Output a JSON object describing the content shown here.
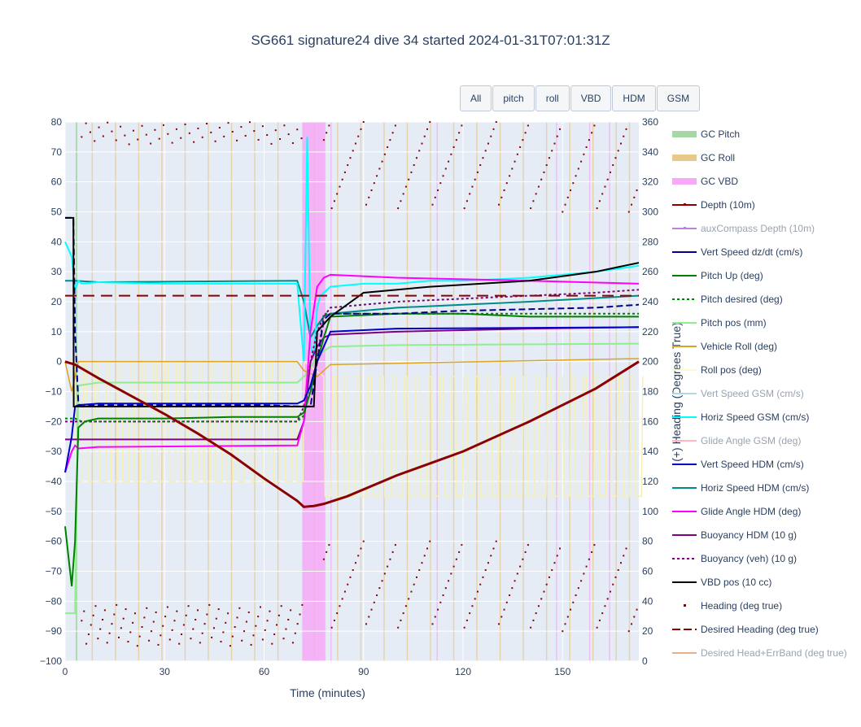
{
  "title": "SG661 signature24 dive 34 started 2024-01-31T07:01:31Z",
  "buttons": [
    "All",
    "pitch",
    "roll",
    "VBD",
    "HDM",
    "GSM"
  ],
  "colors": {
    "plot_bg": "#e5ecf6",
    "grid": "#ffffff",
    "text": "#2a3f5f"
  },
  "chart_data": {
    "type": "line",
    "xlabel": "Time (minutes)",
    "ylabel_right": "(+) Heading (Degrees True)",
    "xlim": [
      0,
      173
    ],
    "ylim_left": [
      -100,
      80
    ],
    "ylim_right": [
      0,
      360
    ],
    "x_ticks": [
      0,
      30,
      60,
      90,
      120,
      150
    ],
    "y_left_ticks": [
      80,
      70,
      60,
      50,
      40,
      30,
      20,
      10,
      0,
      -10,
      -20,
      -30,
      -40,
      -50,
      -60,
      -70,
      -80,
      -90,
      -100
    ],
    "y_left_tick_labels": [
      "80",
      "70",
      "60",
      "50",
      "40",
      "30",
      "20",
      "10",
      "0",
      "−10",
      "−20",
      "−30",
      "−40",
      "−50",
      "−60",
      "−70",
      "−80",
      "−90",
      "−100"
    ],
    "y_right_ticks": [
      360,
      340,
      320,
      300,
      280,
      260,
      240,
      220,
      200,
      180,
      160,
      140,
      120,
      100,
      80,
      60,
      40,
      20,
      0
    ],
    "legend": [
      {
        "name": "GC Pitch",
        "color": "#a6d8a6",
        "style": "band",
        "dim": false
      },
      {
        "name": "GC Roll",
        "color": "#e8c98a",
        "style": "band",
        "dim": false
      },
      {
        "name": "GC VBD",
        "color": "#f7a8f7",
        "style": "band",
        "dim": false
      },
      {
        "name": "Depth (10m)",
        "color": "#8b0000",
        "style": "line-marker",
        "dim": false
      },
      {
        "name": "auxCompass Depth (10m)",
        "color": "#c080e0",
        "style": "line-marker",
        "dim": true
      },
      {
        "name": "Vert Speed dz/dt (cm/s)",
        "color": "#00008b",
        "style": "line",
        "dim": false
      },
      {
        "name": "Pitch Up (deg)",
        "color": "#008000",
        "style": "line",
        "dim": false
      },
      {
        "name": "Pitch desired (deg)",
        "color": "#008000",
        "style": "dot",
        "dim": false
      },
      {
        "name": "Pitch pos (mm)",
        "color": "#90ee90",
        "style": "line",
        "dim": false
      },
      {
        "name": "Vehicle Roll (deg)",
        "color": "#daa520",
        "style": "line",
        "dim": false
      },
      {
        "name": "Roll pos (deg)",
        "color": "#fafad2",
        "style": "line",
        "dim": false
      },
      {
        "name": "Vert Speed GSM (cm/s)",
        "color": "#add8e6",
        "style": "line",
        "dim": true
      },
      {
        "name": "Horiz Speed GSM (cm/s)",
        "color": "#00ffff",
        "style": "line",
        "dim": false
      },
      {
        "name": "Glide Angle GSM (deg)",
        "color": "#ffb6c1",
        "style": "line",
        "dim": true
      },
      {
        "name": "Vert Speed HDM (cm/s)",
        "color": "#0000cd",
        "style": "line",
        "dim": false
      },
      {
        "name": "Horiz Speed HDM (cm/s)",
        "color": "#008b8b",
        "style": "line",
        "dim": false
      },
      {
        "name": "Glide Angle HDM (deg)",
        "color": "#ff00ff",
        "style": "line",
        "dim": false
      },
      {
        "name": "Buoyancy HDM (10 g)",
        "color": "#800080",
        "style": "line",
        "dim": false
      },
      {
        "name": "Buoyancy (veh) (10 g)",
        "color": "#800080",
        "style": "dot",
        "dim": false
      },
      {
        "name": "VBD pos (10 cc)",
        "color": "#000000",
        "style": "line",
        "dim": false
      },
      {
        "name": "Heading (deg true)",
        "color": "#8b0000",
        "style": "marker",
        "dim": false
      },
      {
        "name": "Desired Heading (deg true)",
        "color": "#8b0000",
        "style": "dash",
        "dim": false
      },
      {
        "name": "Desired Head+ErrBand (deg true)",
        "color": "#e8b08a",
        "style": "line",
        "dim": true
      }
    ],
    "bands": {
      "vbd": [
        [
          71.5,
          78.5
        ]
      ],
      "pitch": [
        [
          3.2,
          3.6
        ]
      ],
      "roll_lines": [
        8,
        15,
        22,
        29,
        36,
        43,
        50,
        57,
        64,
        75,
        82,
        89,
        96,
        103,
        110,
        117,
        124,
        131,
        138,
        145,
        152,
        159,
        166,
        170
      ],
      "vbd_lines": [
        80,
        112,
        148,
        158,
        164
      ]
    },
    "series": {
      "depth": {
        "x": [
          0,
          3,
          10,
          20,
          30,
          40,
          50,
          60,
          70,
          72,
          75,
          78,
          85,
          100,
          120,
          140,
          160,
          173
        ],
        "y": [
          0,
          -1,
          -5.5,
          -11.5,
          -17.5,
          -24,
          -31,
          -39,
          -46.5,
          -48.5,
          -48.2,
          -47.5,
          -45,
          -38,
          -30,
          -20,
          -9,
          0
        ]
      },
      "vert_speed_dzdt": {
        "x": [
          0,
          2.5,
          3,
          4,
          5,
          10,
          20,
          40,
          60,
          71,
          74,
          76,
          78,
          80,
          100,
          120,
          140,
          160,
          173
        ],
        "y": [
          48,
          48,
          10,
          -14,
          -15,
          -14.5,
          -14.5,
          -14.5,
          -14.5,
          -15,
          -15,
          0,
          14,
          16,
          16,
          17,
          17.5,
          18,
          19
        ]
      },
      "pitch_up": {
        "x": [
          0,
          1,
          2,
          3,
          4,
          6,
          10,
          30,
          50,
          70,
          72,
          74,
          76,
          78,
          80,
          100,
          120,
          140,
          160,
          173
        ],
        "y": [
          -55,
          -65,
          -75,
          -60,
          -22,
          -20,
          -19,
          -19,
          -18.5,
          -18.5,
          -17,
          -10,
          0,
          8,
          15,
          16,
          16,
          15,
          15,
          15
        ]
      },
      "pitch_desired": {
        "x": [
          0,
          3,
          5,
          70,
          72,
          76,
          78,
          173
        ],
        "y": [
          -19,
          -19,
          -20,
          -20,
          -18,
          0,
          16,
          16
        ]
      },
      "pitch_pos": {
        "x": [
          0,
          3,
          4,
          10,
          70,
          72,
          74,
          76,
          80,
          100,
          173
        ],
        "y": [
          -84,
          -84,
          -8,
          -7,
          -7,
          -5,
          -2,
          2,
          5,
          5.5,
          6
        ]
      },
      "vehicle_roll": {
        "x": [
          0,
          2,
          4,
          5,
          70,
          72,
          76,
          80,
          173
        ],
        "y": [
          0,
          -10,
          0,
          0,
          0,
          -3,
          -5,
          -1,
          1
        ]
      },
      "horiz_speed_gsm": {
        "x": [
          0,
          2,
          3,
          4,
          5,
          10,
          30,
          60,
          70,
          72,
          73,
          74,
          75,
          76,
          77,
          80,
          90,
          100,
          110,
          120,
          140,
          160,
          173
        ],
        "y": [
          40,
          35,
          24,
          27,
          26,
          26.5,
          26,
          26,
          26,
          0,
          75,
          5,
          2,
          18,
          22,
          25,
          26,
          26,
          27,
          27,
          28,
          30,
          32
        ]
      },
      "vert_speed_hdm": {
        "x": [
          0,
          2,
          3,
          4,
          10,
          70,
          72,
          74,
          76,
          78,
          80,
          100,
          173
        ],
        "y": [
          -37,
          -25,
          -15,
          -14.5,
          -14,
          -14,
          -13,
          -8,
          0,
          5,
          10,
          11,
          11.5
        ]
      },
      "horiz_speed_hdm": {
        "x": [
          0,
          3,
          10,
          70,
          72,
          74,
          76,
          78,
          80,
          100,
          140,
          173
        ],
        "y": [
          27,
          27,
          26.5,
          27,
          20,
          8,
          12,
          15,
          16,
          18,
          20,
          22
        ]
      },
      "glide_angle_hdm": {
        "x": [
          0,
          2,
          3,
          4,
          10,
          70,
          72,
          74,
          76,
          78,
          80,
          100,
          140,
          173
        ],
        "y": [
          -37,
          -30,
          -28,
          -29,
          -28.5,
          -28,
          -20,
          10,
          25,
          28,
          29,
          28,
          27,
          26
        ]
      },
      "buoyancy_hdm": {
        "x": [
          0,
          3,
          10,
          70,
          72,
          74,
          76,
          78,
          80,
          100,
          140,
          173
        ],
        "y": [
          -26,
          -26,
          -26,
          -26,
          -20,
          0,
          5,
          8,
          9,
          10,
          11,
          11.5
        ]
      },
      "buoyancy_veh": {
        "x": [
          0,
          3,
          10,
          70,
          72,
          74,
          76,
          78,
          80,
          100,
          120,
          140,
          160,
          173
        ],
        "y": [
          -20,
          -20,
          -20,
          -20,
          -15,
          0,
          10,
          15,
          18,
          20,
          21,
          22,
          23,
          24
        ]
      },
      "vbd_pos": {
        "x": [
          0,
          2.5,
          2.6,
          3,
          70,
          75,
          76,
          80,
          90,
          110,
          140,
          160,
          173
        ],
        "y": [
          48,
          48,
          -15,
          -15,
          -15,
          -15,
          10,
          15,
          23,
          25,
          27,
          30,
          33
        ]
      },
      "desired_heading_deg": {
        "x": [
          0,
          173
        ],
        "y": [
          22,
          22
        ]
      }
    }
  }
}
